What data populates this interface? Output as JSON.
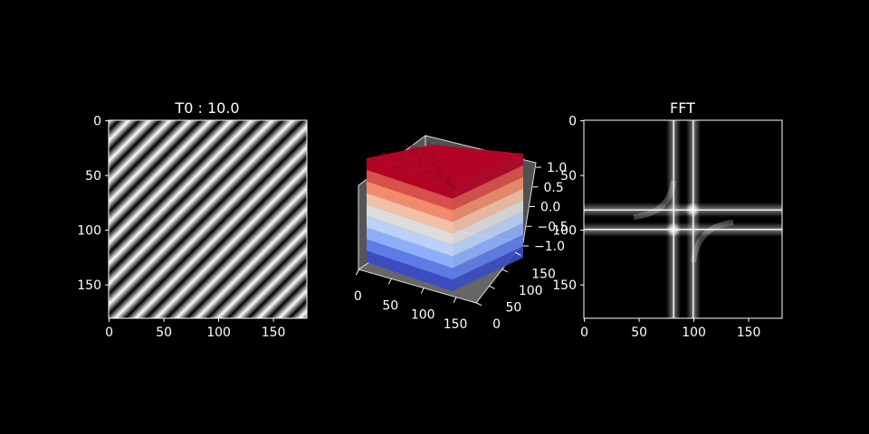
{
  "figure": {
    "background": "#000000",
    "foreground": "#ffffff"
  },
  "chart_data": [
    {
      "type": "heatmap",
      "panel": "sinusoid-image",
      "title": "T0 : 10.0",
      "colormap": "gray",
      "image_size": [
        181,
        181
      ],
      "pattern": "diagonal sinusoidal stripes",
      "x_ticks": [
        "0",
        "50",
        "100",
        "150"
      ],
      "y_ticks": [
        "0",
        "50",
        "100",
        "150"
      ],
      "period": 10.0,
      "xlim": [
        0,
        181
      ],
      "ylim": [
        181,
        0
      ]
    },
    {
      "type": "surface",
      "panel": "3d-surface",
      "title": "",
      "colormap": "coolwarm",
      "x_ticks": [
        "0",
        "50",
        "100",
        "150"
      ],
      "y_ticks": [
        "0",
        "50",
        "100",
        "150"
      ],
      "z_ticks": [
        "−1.0",
        "−0.5",
        "0.0",
        "0.5",
        "1.0"
      ],
      "zlim": [
        -1.0,
        1.0
      ],
      "band_colors": [
        "#3b4cc0",
        "#5e7ce8",
        "#8caefb",
        "#bcd1f8",
        "#dddddd",
        "#f3c0a6",
        "#f08c6c",
        "#d8504a",
        "#b40426"
      ]
    },
    {
      "type": "heatmap",
      "panel": "fft-magnitude",
      "title": "FFT",
      "colormap": "gray",
      "image_size": [
        181,
        181
      ],
      "pattern": "cross at center with bright peaks",
      "x_ticks": [
        "0",
        "50",
        "100",
        "150"
      ],
      "y_ticks": [
        "0",
        "50",
        "100",
        "150"
      ],
      "xlim": [
        0,
        181
      ],
      "ylim": [
        181,
        0
      ]
    }
  ]
}
